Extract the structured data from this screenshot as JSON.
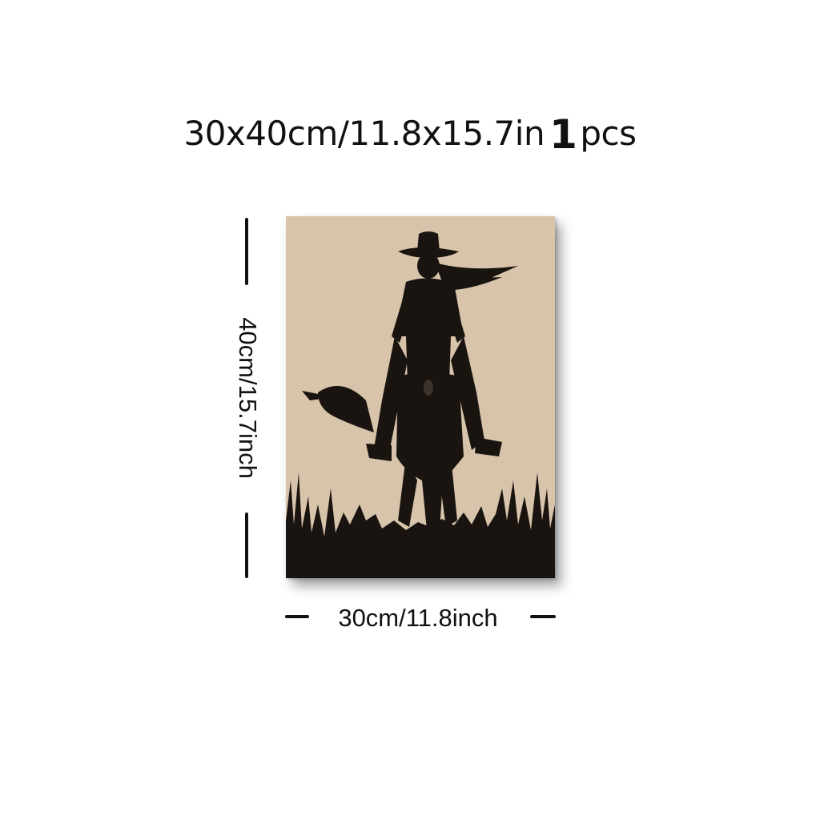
{
  "header": {
    "size_text": "30x40cm/11.8x15.7in",
    "quantity_number": "1",
    "quantity_unit": "pcs"
  },
  "dimensions": {
    "height_label": "40cm/15.7inch",
    "width_label": "30cm/11.8inch"
  },
  "artwork": {
    "subject": "silhouette of cowboy rider on horse",
    "background_color": "#d8c4ab",
    "ink_color": "#1a1410"
  }
}
